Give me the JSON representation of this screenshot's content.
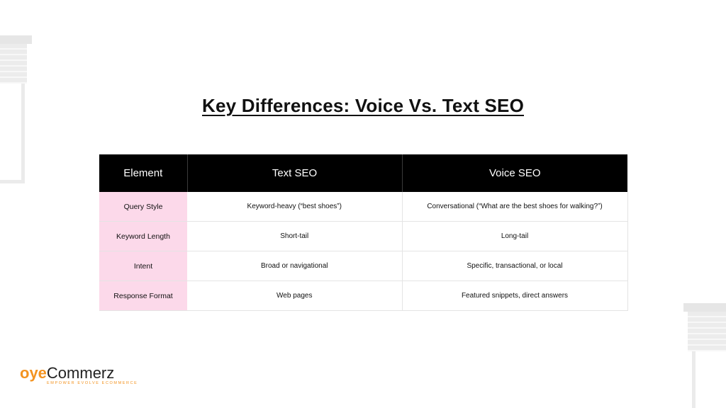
{
  "title": "Key Differences: Voice Vs. Text SEO",
  "table": {
    "headers": [
      "Element",
      "Text SEO",
      "Voice SEO"
    ],
    "rows": [
      [
        "Query Style",
        "Keyword-heavy (“best shoes”)",
        "Conversational (“What are the best shoes for walking?”)"
      ],
      [
        "Keyword Length",
        "Short-tail",
        "Long-tail"
      ],
      [
        "Intent",
        "Broad or navigational",
        "Specific, transactional, or local"
      ],
      [
        "Response Format",
        "Web pages",
        "Featured snippets, direct answers"
      ]
    ]
  },
  "logo": {
    "brand_part1": "oye",
    "brand_part2": "Commerz",
    "tagline": "EMPOWER EVOLVE ECOMMERCE"
  },
  "colors": {
    "header_bg": "#000000",
    "first_column_bg": "#fcd9ea",
    "brand_orange": "#f39320"
  }
}
